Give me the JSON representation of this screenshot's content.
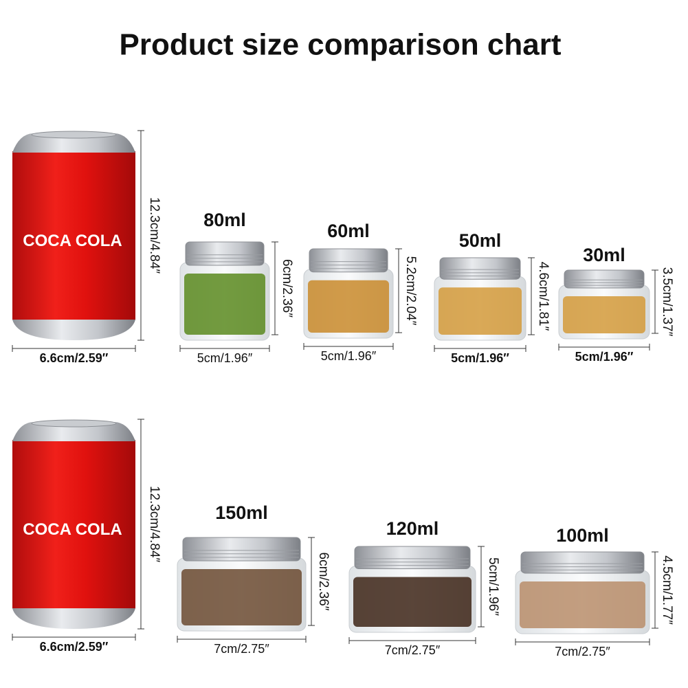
{
  "title": "Product size comparison chart",
  "rows": [
    {
      "can": {
        "label": "COCA COLA",
        "height": "12.3cm/4.84″",
        "width": "6.6cm/2.59″"
      },
      "jars": [
        {
          "volume": "80ml",
          "height": "6cm/2.36″",
          "width": "5cm/1.96″"
        },
        {
          "volume": "60ml",
          "height": "5.2cm/2.04″",
          "width": "5cm/1.96″"
        },
        {
          "volume": "50ml",
          "height": "4.6cm/1.81″",
          "width": "5cm/1.96″"
        },
        {
          "volume": "30ml",
          "height": "3.5cm/1.37″",
          "width": "5cm/1.96″"
        }
      ]
    },
    {
      "can": {
        "label": "COCA COLA",
        "height": "12.3cm/4.84″",
        "width": "6.6cm/2.59″"
      },
      "jars": [
        {
          "volume": "150ml",
          "height": "6cm/2.36″",
          "width": "7cm/2.75″"
        },
        {
          "volume": "120ml",
          "height": "5cm/1.96″",
          "width": "7cm/2.75″"
        },
        {
          "volume": "100ml",
          "height": "4.5cm/1.77″",
          "width": "7cm/2.75″"
        }
      ]
    }
  ]
}
